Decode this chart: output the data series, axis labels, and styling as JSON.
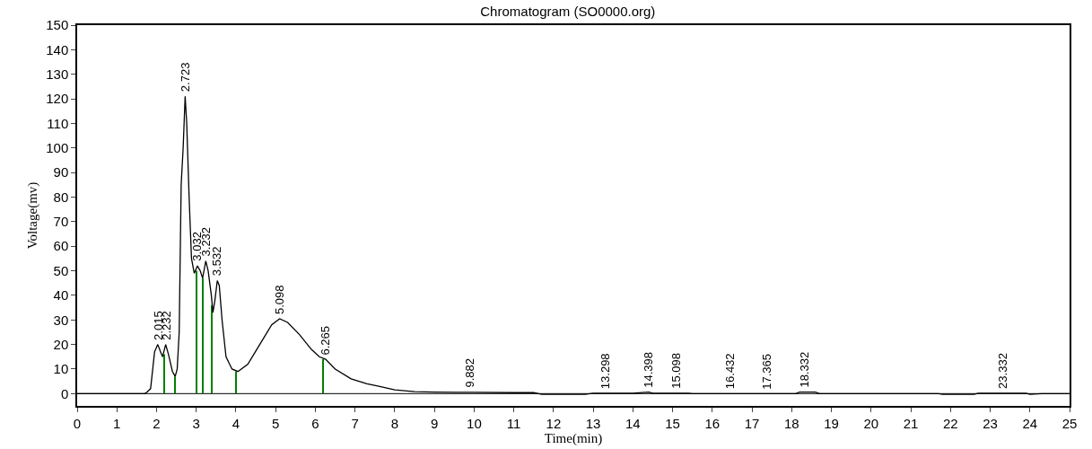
{
  "chart_data": {
    "type": "line",
    "title": "Chromatogram (SO0000.org)",
    "xlabel": "Time(min)",
    "ylabel": "Voltage(mv)",
    "xlim": [
      0,
      25
    ],
    "xticks": [
      0,
      1,
      2,
      3,
      4,
      5,
      6,
      7,
      8,
      9,
      10,
      11,
      12,
      13,
      14,
      15,
      16,
      17,
      18,
      19,
      20,
      21,
      22,
      23,
      24,
      25
    ],
    "ylim": [
      -5,
      150
    ],
    "yticks": [
      0,
      10,
      20,
      30,
      40,
      50,
      60,
      70,
      80,
      90,
      100,
      110,
      120,
      130,
      140,
      150
    ],
    "grid": false,
    "marker": "none",
    "line_style": "solid",
    "series": [
      {
        "color": "#000000",
        "x": [
          0,
          1.7,
          1.75,
          1.85,
          1.95,
          2.03,
          2.1,
          2.15,
          2.23,
          2.3,
          2.4,
          2.47,
          2.52,
          2.57,
          2.62,
          2.67,
          2.72,
          2.76,
          2.82,
          2.88,
          2.95,
          3.03,
          3.1,
          3.16,
          3.24,
          3.3,
          3.38,
          3.42,
          3.47,
          3.53,
          3.58,
          3.65,
          3.75,
          3.9,
          4.05,
          4.3,
          4.6,
          4.9,
          5.1,
          5.3,
          5.6,
          5.9,
          6.1,
          6.26,
          6.5,
          6.9,
          7.3,
          7.6,
          8,
          8.5,
          9,
          10,
          11,
          11.5,
          11.7,
          12.8,
          13,
          14,
          14.4,
          14.5,
          15.4,
          15.5,
          18.1,
          18.2,
          18.6,
          18.7,
          21.7,
          21.8,
          22.6,
          22.7,
          23.9,
          24,
          24.3,
          25
        ],
        "values": [
          0,
          0,
          0.5,
          2,
          17,
          20,
          17,
          15,
          20,
          16,
          9,
          7,
          10,
          25,
          85,
          100,
          121,
          110,
          80,
          55,
          49,
          52,
          50,
          47,
          54,
          50,
          40,
          33,
          38,
          46,
          44,
          30,
          15,
          10,
          9,
          12,
          20,
          28,
          30.5,
          29,
          24,
          18,
          15,
          14,
          10,
          6,
          4,
          3,
          1.5,
          0.8,
          0.6,
          0.5,
          0.4,
          0.4,
          -0.3,
          -0.3,
          0.2,
          0.2,
          0.6,
          0.2,
          0.2,
          0,
          0,
          0.6,
          0.6,
          0,
          0,
          -0.3,
          -0.3,
          0.2,
          0.2,
          -0.3,
          0,
          0
        ]
      },
      {
        "type": "bar",
        "color": "#008000",
        "x": [
          2.2,
          2.47,
          3.0,
          3.16,
          3.4,
          4.0,
          6.2
        ],
        "values": [
          16,
          7,
          50,
          47,
          36,
          9,
          14
        ]
      }
    ],
    "ref_lines": [
      {
        "axis": "y",
        "value": 0,
        "color": "#000000"
      }
    ],
    "annotations": [
      {
        "text": "2.015",
        "x": 2.03,
        "y": 20
      },
      {
        "text": "2.232",
        "x": 2.23,
        "y": 20
      },
      {
        "text": "2.723",
        "x": 2.72,
        "y": 121
      },
      {
        "text": "3.032",
        "x": 3.03,
        "y": 52
      },
      {
        "text": "3.232",
        "x": 3.24,
        "y": 54
      },
      {
        "text": "3.532",
        "x": 3.53,
        "y": 46
      },
      {
        "text": "5.098",
        "x": 5.1,
        "y": 30.5
      },
      {
        "text": "6.265",
        "x": 6.26,
        "y": 14
      },
      {
        "text": "9.882",
        "x": 9.88,
        "y": 0.5
      },
      {
        "text": "13.298",
        "x": 13.3,
        "y": 0.2
      },
      {
        "text": "14.398",
        "x": 14.4,
        "y": 0.6
      },
      {
        "text": "15.098",
        "x": 15.1,
        "y": 0.2
      },
      {
        "text": "16.432",
        "x": 16.43,
        "y": 0
      },
      {
        "text": "17.365",
        "x": 17.37,
        "y": 0
      },
      {
        "text": "18.332",
        "x": 18.33,
        "y": 0.6
      },
      {
        "text": "23.332",
        "x": 23.33,
        "y": 0.2
      }
    ]
  }
}
